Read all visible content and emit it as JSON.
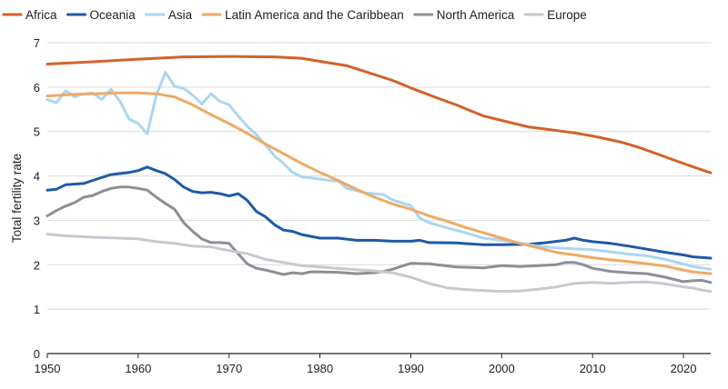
{
  "chart_data": {
    "type": "line",
    "title": "",
    "xlabel": "",
    "ylabel": "Total fertility rate",
    "xlim": [
      1950,
      2023
    ],
    "ylim": [
      0,
      7
    ],
    "xticks": [
      1950,
      1960,
      1970,
      1980,
      1990,
      2000,
      2010,
      2020
    ],
    "yticks": [
      0,
      1,
      2,
      3,
      4,
      5,
      6,
      7
    ],
    "grid": "horizontal",
    "legend": "top",
    "series": [
      {
        "name": "Africa",
        "color": "#d4622a",
        "points": [
          [
            1950,
            6.52
          ],
          [
            1955,
            6.57
          ],
          [
            1960,
            6.63
          ],
          [
            1965,
            6.68
          ],
          [
            1970,
            6.69
          ],
          [
            1975,
            6.68
          ],
          [
            1978,
            6.65
          ],
          [
            1980,
            6.58
          ],
          [
            1983,
            6.48
          ],
          [
            1985,
            6.35
          ],
          [
            1988,
            6.15
          ],
          [
            1990,
            5.98
          ],
          [
            1993,
            5.75
          ],
          [
            1995,
            5.6
          ],
          [
            1998,
            5.35
          ],
          [
            2000,
            5.25
          ],
          [
            2003,
            5.1
          ],
          [
            2005,
            5.05
          ],
          [
            2008,
            4.97
          ],
          [
            2010,
            4.9
          ],
          [
            2013,
            4.77
          ],
          [
            2015,
            4.65
          ],
          [
            2018,
            4.43
          ],
          [
            2020,
            4.28
          ],
          [
            2023,
            4.07
          ]
        ]
      },
      {
        "name": "Oceania",
        "color": "#1f5aa6",
        "points": [
          [
            1950,
            3.68
          ],
          [
            1951,
            3.7
          ],
          [
            1952,
            3.8
          ],
          [
            1954,
            3.83
          ],
          [
            1955,
            3.9
          ],
          [
            1957,
            4.03
          ],
          [
            1959,
            4.08
          ],
          [
            1960,
            4.12
          ],
          [
            1961,
            4.2
          ],
          [
            1962,
            4.12
          ],
          [
            1963,
            4.05
          ],
          [
            1964,
            3.92
          ],
          [
            1965,
            3.75
          ],
          [
            1966,
            3.65
          ],
          [
            1967,
            3.62
          ],
          [
            1968,
            3.63
          ],
          [
            1969,
            3.6
          ],
          [
            1970,
            3.55
          ],
          [
            1971,
            3.6
          ],
          [
            1972,
            3.45
          ],
          [
            1973,
            3.2
          ],
          [
            1974,
            3.08
          ],
          [
            1975,
            2.9
          ],
          [
            1976,
            2.78
          ],
          [
            1977,
            2.75
          ],
          [
            1978,
            2.68
          ],
          [
            1980,
            2.6
          ],
          [
            1982,
            2.6
          ],
          [
            1984,
            2.55
          ],
          [
            1986,
            2.55
          ],
          [
            1988,
            2.53
          ],
          [
            1990,
            2.53
          ],
          [
            1991,
            2.55
          ],
          [
            1992,
            2.5
          ],
          [
            1995,
            2.49
          ],
          [
            1998,
            2.45
          ],
          [
            2000,
            2.45
          ],
          [
            2003,
            2.46
          ],
          [
            2005,
            2.5
          ],
          [
            2007,
            2.55
          ],
          [
            2008,
            2.6
          ],
          [
            2009,
            2.55
          ],
          [
            2010,
            2.52
          ],
          [
            2012,
            2.48
          ],
          [
            2014,
            2.42
          ],
          [
            2016,
            2.35
          ],
          [
            2018,
            2.28
          ],
          [
            2020,
            2.22
          ],
          [
            2021,
            2.18
          ],
          [
            2023,
            2.15
          ]
        ]
      },
      {
        "name": "Asia",
        "color": "#a9d7f2",
        "points": [
          [
            1950,
            5.72
          ],
          [
            1951,
            5.65
          ],
          [
            1952,
            5.92
          ],
          [
            1953,
            5.78
          ],
          [
            1954,
            5.85
          ],
          [
            1955,
            5.87
          ],
          [
            1956,
            5.72
          ],
          [
            1957,
            5.95
          ],
          [
            1958,
            5.68
          ],
          [
            1959,
            5.28
          ],
          [
            1960,
            5.18
          ],
          [
            1961,
            4.95
          ],
          [
            1962,
            5.82
          ],
          [
            1963,
            6.33
          ],
          [
            1964,
            6.02
          ],
          [
            1965,
            5.97
          ],
          [
            1966,
            5.82
          ],
          [
            1967,
            5.62
          ],
          [
            1968,
            5.85
          ],
          [
            1969,
            5.68
          ],
          [
            1970,
            5.6
          ],
          [
            1971,
            5.35
          ],
          [
            1972,
            5.12
          ],
          [
            1973,
            4.93
          ],
          [
            1974,
            4.7
          ],
          [
            1975,
            4.45
          ],
          [
            1976,
            4.28
          ],
          [
            1977,
            4.08
          ],
          [
            1978,
            3.98
          ],
          [
            1980,
            3.93
          ],
          [
            1981,
            3.9
          ],
          [
            1982,
            3.88
          ],
          [
            1983,
            3.72
          ],
          [
            1985,
            3.62
          ],
          [
            1987,
            3.58
          ],
          [
            1988,
            3.46
          ],
          [
            1990,
            3.33
          ],
          [
            1991,
            3.05
          ],
          [
            1992,
            2.95
          ],
          [
            1994,
            2.83
          ],
          [
            1996,
            2.72
          ],
          [
            1998,
            2.6
          ],
          [
            2000,
            2.55
          ],
          [
            2002,
            2.49
          ],
          [
            2004,
            2.42
          ],
          [
            2006,
            2.38
          ],
          [
            2008,
            2.36
          ],
          [
            2010,
            2.34
          ],
          [
            2012,
            2.29
          ],
          [
            2014,
            2.24
          ],
          [
            2016,
            2.2
          ],
          [
            2018,
            2.12
          ],
          [
            2020,
            2.02
          ],
          [
            2021,
            1.96
          ],
          [
            2023,
            1.9
          ]
        ]
      },
      {
        "name": "Latin America and the Caribbean",
        "color": "#eeaa66",
        "points": [
          [
            1950,
            5.8
          ],
          [
            1953,
            5.84
          ],
          [
            1955,
            5.85
          ],
          [
            1958,
            5.87
          ],
          [
            1960,
            5.87
          ],
          [
            1962,
            5.85
          ],
          [
            1964,
            5.78
          ],
          [
            1966,
            5.6
          ],
          [
            1968,
            5.38
          ],
          [
            1970,
            5.18
          ],
          [
            1972,
            4.96
          ],
          [
            1974,
            4.72
          ],
          [
            1976,
            4.5
          ],
          [
            1978,
            4.28
          ],
          [
            1980,
            4.08
          ],
          [
            1982,
            3.9
          ],
          [
            1984,
            3.7
          ],
          [
            1986,
            3.52
          ],
          [
            1988,
            3.37
          ],
          [
            1990,
            3.25
          ],
          [
            1992,
            3.1
          ],
          [
            1994,
            2.98
          ],
          [
            1996,
            2.84
          ],
          [
            1998,
            2.72
          ],
          [
            2000,
            2.6
          ],
          [
            2002,
            2.48
          ],
          [
            2004,
            2.38
          ],
          [
            2006,
            2.28
          ],
          [
            2008,
            2.22
          ],
          [
            2010,
            2.16
          ],
          [
            2012,
            2.11
          ],
          [
            2014,
            2.07
          ],
          [
            2016,
            2.02
          ],
          [
            2018,
            1.97
          ],
          [
            2020,
            1.88
          ],
          [
            2021,
            1.84
          ],
          [
            2023,
            1.8
          ]
        ]
      },
      {
        "name": "North America",
        "color": "#8e8e96",
        "points": [
          [
            1950,
            3.1
          ],
          [
            1951,
            3.22
          ],
          [
            1952,
            3.32
          ],
          [
            1953,
            3.4
          ],
          [
            1954,
            3.52
          ],
          [
            1955,
            3.56
          ],
          [
            1956,
            3.65
          ],
          [
            1957,
            3.72
          ],
          [
            1958,
            3.75
          ],
          [
            1959,
            3.75
          ],
          [
            1960,
            3.72
          ],
          [
            1961,
            3.68
          ],
          [
            1962,
            3.52
          ],
          [
            1963,
            3.38
          ],
          [
            1964,
            3.25
          ],
          [
            1965,
            2.95
          ],
          [
            1966,
            2.75
          ],
          [
            1967,
            2.58
          ],
          [
            1968,
            2.5
          ],
          [
            1969,
            2.5
          ],
          [
            1970,
            2.48
          ],
          [
            1971,
            2.25
          ],
          [
            1972,
            2.02
          ],
          [
            1973,
            1.92
          ],
          [
            1974,
            1.88
          ],
          [
            1975,
            1.83
          ],
          [
            1976,
            1.78
          ],
          [
            1977,
            1.82
          ],
          [
            1978,
            1.8
          ],
          [
            1979,
            1.84
          ],
          [
            1980,
            1.84
          ],
          [
            1982,
            1.83
          ],
          [
            1984,
            1.8
          ],
          [
            1986,
            1.82
          ],
          [
            1987,
            1.85
          ],
          [
            1988,
            1.9
          ],
          [
            1989,
            1.97
          ],
          [
            1990,
            2.03
          ],
          [
            1992,
            2.02
          ],
          [
            1995,
            1.95
          ],
          [
            1998,
            1.93
          ],
          [
            2000,
            1.98
          ],
          [
            2002,
            1.96
          ],
          [
            2004,
            1.98
          ],
          [
            2006,
            2.0
          ],
          [
            2007,
            2.05
          ],
          [
            2008,
            2.05
          ],
          [
            2009,
            2.0
          ],
          [
            2010,
            1.92
          ],
          [
            2012,
            1.85
          ],
          [
            2014,
            1.82
          ],
          [
            2016,
            1.8
          ],
          [
            2018,
            1.72
          ],
          [
            2020,
            1.62
          ],
          [
            2021,
            1.64
          ],
          [
            2022,
            1.65
          ],
          [
            2023,
            1.6
          ]
        ]
      },
      {
        "name": "Europe",
        "color": "#c6c9cf",
        "points": [
          [
            1950,
            2.69
          ],
          [
            1952,
            2.65
          ],
          [
            1955,
            2.62
          ],
          [
            1958,
            2.6
          ],
          [
            1960,
            2.58
          ],
          [
            1962,
            2.52
          ],
          [
            1964,
            2.48
          ],
          [
            1966,
            2.42
          ],
          [
            1968,
            2.4
          ],
          [
            1970,
            2.32
          ],
          [
            1972,
            2.25
          ],
          [
            1974,
            2.12
          ],
          [
            1976,
            2.05
          ],
          [
            1978,
            1.98
          ],
          [
            1980,
            1.95
          ],
          [
            1982,
            1.92
          ],
          [
            1984,
            1.89
          ],
          [
            1986,
            1.86
          ],
          [
            1988,
            1.82
          ],
          [
            1990,
            1.72
          ],
          [
            1992,
            1.58
          ],
          [
            1994,
            1.48
          ],
          [
            1996,
            1.44
          ],
          [
            1998,
            1.42
          ],
          [
            2000,
            1.4
          ],
          [
            2002,
            1.41
          ],
          [
            2004,
            1.45
          ],
          [
            2006,
            1.5
          ],
          [
            2008,
            1.58
          ],
          [
            2010,
            1.6
          ],
          [
            2012,
            1.58
          ],
          [
            2014,
            1.6
          ],
          [
            2016,
            1.61
          ],
          [
            2018,
            1.57
          ],
          [
            2020,
            1.5
          ],
          [
            2021,
            1.48
          ],
          [
            2022,
            1.43
          ],
          [
            2023,
            1.4
          ]
        ]
      }
    ]
  }
}
